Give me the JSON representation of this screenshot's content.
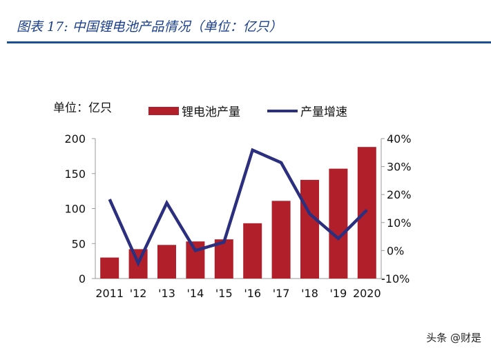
{
  "title": "图表 17:  中国锂电池产品情况（单位：亿只）",
  "watermark": "头条 @财是",
  "chart_data": {
    "type": "bar+line",
    "unit_label": "单位：亿只",
    "categories": [
      "2011",
      "'12",
      "'13",
      "'14",
      "'15",
      "'16",
      "'17",
      "'18",
      "'19",
      "2020"
    ],
    "series": [
      {
        "name": "锂电池产量",
        "type": "bar",
        "axis": "left",
        "color": "#b01f2a",
        "values": [
          30,
          42,
          48,
          53,
          56,
          79,
          111,
          141,
          157,
          188
        ]
      },
      {
        "name": "产量增速",
        "type": "line",
        "axis": "right",
        "color": "#2b2f7e",
        "values": [
          18.3,
          -4.5,
          17,
          0,
          3,
          35.9,
          31.4,
          13.1,
          4.3,
          14.5
        ]
      }
    ],
    "left_axis": {
      "ylim": [
        0,
        200
      ],
      "ticks": [
        "0",
        "50",
        "100",
        "150",
        "200"
      ]
    },
    "right_axis": {
      "ylim": [
        -10,
        40
      ],
      "ticks": [
        "-10%",
        "0%",
        "10%",
        "20%",
        "30%",
        "40%"
      ]
    },
    "legend_position": "top",
    "grid": false
  }
}
